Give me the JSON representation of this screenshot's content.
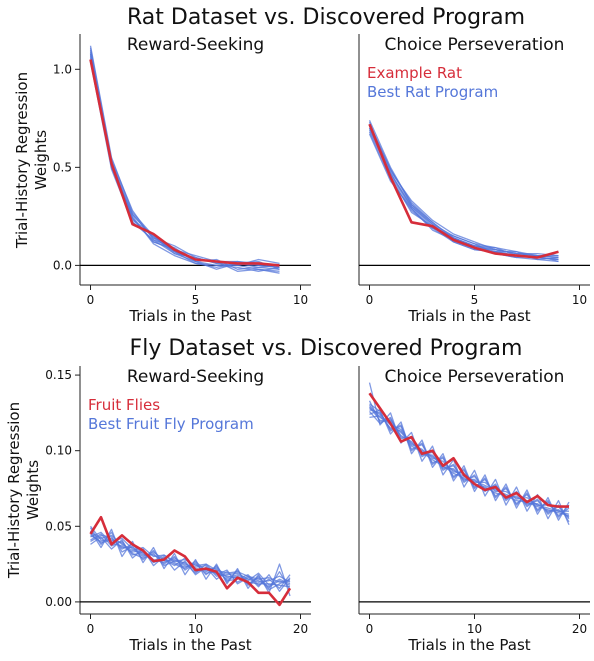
{
  "figure": {
    "row1_title": "Rat Dataset vs. Discovered Program",
    "row2_title": "Fly Dataset vs. Discovered Program",
    "ylabel_line1": "Trial-History Regression",
    "ylabel_line2": "Weights",
    "colors": {
      "data": "#d62d3a",
      "program": "#5577d9",
      "zero_line": "#000000",
      "axis": "#222222"
    }
  },
  "chart_data": [
    {
      "type": "line",
      "title": "Reward-Seeking",
      "xlabel": "Trials in the Past",
      "ylabel": "Trial-History Regression Weights",
      "xlim": [
        -0.5,
        10.5
      ],
      "ylim": [
        -0.1,
        1.18
      ],
      "xticks": [
        0,
        5,
        10
      ],
      "yticks": [
        0.0,
        0.5,
        1.0
      ],
      "ytick_labels": [
        "0.0",
        "0.5",
        "1.0"
      ],
      "zero_line": true,
      "x": [
        0,
        1,
        2,
        3,
        4,
        5,
        6,
        7,
        8,
        9
      ],
      "legend": null,
      "data_series": {
        "color": "#d62d3a",
        "values": [
          1.05,
          0.52,
          0.21,
          0.16,
          0.08,
          0.03,
          0.02,
          0.01,
          0.01,
          0.0
        ]
      },
      "program_series": [
        [
          1.08,
          0.53,
          0.26,
          0.14,
          0.07,
          0.03,
          0.02,
          0.01,
          0.0,
          -0.01
        ],
        [
          1.1,
          0.5,
          0.24,
          0.12,
          0.08,
          0.02,
          0.0,
          0.0,
          -0.02,
          -0.03
        ],
        [
          1.12,
          0.55,
          0.27,
          0.15,
          0.06,
          0.04,
          0.01,
          0.02,
          0.0,
          -0.01
        ],
        [
          1.04,
          0.49,
          0.22,
          0.13,
          0.09,
          0.02,
          0.03,
          -0.02,
          -0.01,
          0.0
        ],
        [
          1.07,
          0.51,
          0.25,
          0.11,
          0.05,
          0.01,
          -0.01,
          0.01,
          0.02,
          -0.02
        ],
        [
          1.09,
          0.52,
          0.23,
          0.16,
          0.07,
          0.03,
          0.02,
          -0.03,
          -0.02,
          -0.04
        ],
        [
          1.06,
          0.5,
          0.26,
          0.14,
          0.1,
          0.04,
          0.01,
          0.0,
          0.03,
          0.01
        ],
        [
          1.11,
          0.54,
          0.28,
          0.13,
          0.06,
          0.02,
          -0.02,
          0.01,
          -0.01,
          -0.02
        ],
        [
          1.05,
          0.53,
          0.24,
          0.12,
          0.08,
          0.05,
          0.02,
          0.02,
          0.01,
          0.0
        ],
        [
          1.08,
          0.5,
          0.22,
          0.15,
          0.07,
          0.01,
          0.0,
          -0.01,
          -0.03,
          -0.01
        ]
      ]
    },
    {
      "type": "line",
      "title": "Choice Perseveration",
      "xlabel": "Trials in the Past",
      "ylabel": "",
      "xlim": [
        -0.5,
        10.5
      ],
      "ylim": [
        -0.1,
        1.18
      ],
      "xticks": [
        0,
        5,
        10
      ],
      "yticks": [],
      "ytick_labels": [],
      "zero_line": true,
      "x": [
        0,
        1,
        2,
        3,
        4,
        5,
        6,
        7,
        8,
        9
      ],
      "legend": {
        "position": "top-left",
        "entries": [
          "Example Rat",
          "Best Rat Program"
        ]
      },
      "data_series": {
        "color": "#d62d3a",
        "values": [
          0.72,
          0.45,
          0.22,
          0.2,
          0.13,
          0.09,
          0.06,
          0.05,
          0.04,
          0.07
        ]
      },
      "program_series": [
        [
          0.7,
          0.47,
          0.3,
          0.2,
          0.14,
          0.1,
          0.07,
          0.05,
          0.04,
          0.03
        ],
        [
          0.72,
          0.49,
          0.32,
          0.22,
          0.13,
          0.09,
          0.08,
          0.06,
          0.05,
          0.04
        ],
        [
          0.68,
          0.44,
          0.28,
          0.19,
          0.15,
          0.11,
          0.06,
          0.04,
          0.05,
          0.02
        ],
        [
          0.74,
          0.5,
          0.31,
          0.21,
          0.12,
          0.08,
          0.07,
          0.07,
          0.03,
          0.04
        ],
        [
          0.69,
          0.46,
          0.29,
          0.18,
          0.13,
          0.1,
          0.09,
          0.05,
          0.04,
          0.03
        ],
        [
          0.71,
          0.48,
          0.33,
          0.23,
          0.16,
          0.12,
          0.08,
          0.06,
          0.06,
          0.05
        ],
        [
          0.73,
          0.45,
          0.27,
          0.2,
          0.14,
          0.09,
          0.06,
          0.04,
          0.03,
          0.02
        ],
        [
          0.7,
          0.47,
          0.3,
          0.21,
          0.15,
          0.11,
          0.09,
          0.07,
          0.05,
          0.04
        ],
        [
          0.67,
          0.43,
          0.29,
          0.19,
          0.12,
          0.08,
          0.07,
          0.05,
          0.04,
          0.03
        ],
        [
          0.72,
          0.49,
          0.31,
          0.22,
          0.14,
          0.1,
          0.08,
          0.06,
          0.05,
          0.05
        ]
      ]
    },
    {
      "type": "line",
      "title": "Reward-Seeking",
      "xlabel": "Trials in the Past",
      "ylabel": "Trial-History Regression Weights",
      "xlim": [
        -1,
        21
      ],
      "ylim": [
        -0.008,
        0.156
      ],
      "xticks": [
        0,
        10,
        20
      ],
      "yticks": [
        0.0,
        0.05,
        0.1,
        0.15
      ],
      "ytick_labels": [
        "0.00",
        "0.05",
        "0.10",
        "0.15"
      ],
      "zero_line": true,
      "x": [
        0,
        1,
        2,
        3,
        4,
        5,
        6,
        7,
        8,
        9,
        10,
        11,
        12,
        13,
        14,
        15,
        16,
        17,
        18,
        19
      ],
      "legend": {
        "position": "top-left",
        "entries": [
          "Fruit Flies",
          "Best Fruit Fly Program"
        ]
      },
      "data_series": {
        "color": "#d62d3a",
        "values": [
          0.045,
          0.056,
          0.038,
          0.044,
          0.038,
          0.034,
          0.027,
          0.028,
          0.034,
          0.03,
          0.021,
          0.022,
          0.02,
          0.009,
          0.016,
          0.013,
          0.006,
          0.006,
          -0.002,
          0.009
        ]
      },
      "program_series": [
        [
          0.046,
          0.042,
          0.044,
          0.038,
          0.034,
          0.036,
          0.03,
          0.031,
          0.027,
          0.028,
          0.024,
          0.025,
          0.021,
          0.019,
          0.02,
          0.017,
          0.015,
          0.016,
          0.013,
          0.014
        ],
        [
          0.041,
          0.045,
          0.037,
          0.04,
          0.031,
          0.033,
          0.026,
          0.029,
          0.025,
          0.022,
          0.027,
          0.02,
          0.023,
          0.016,
          0.018,
          0.014,
          0.019,
          0.011,
          0.015,
          0.012
        ],
        [
          0.049,
          0.038,
          0.046,
          0.033,
          0.037,
          0.028,
          0.034,
          0.025,
          0.03,
          0.021,
          0.026,
          0.018,
          0.024,
          0.013,
          0.021,
          0.011,
          0.017,
          0.009,
          0.02,
          0.008
        ],
        [
          0.038,
          0.043,
          0.035,
          0.041,
          0.029,
          0.035,
          0.024,
          0.03,
          0.021,
          0.027,
          0.018,
          0.023,
          0.015,
          0.02,
          0.013,
          0.017,
          0.01,
          0.018,
          0.007,
          0.016
        ],
        [
          0.044,
          0.04,
          0.042,
          0.036,
          0.036,
          0.031,
          0.031,
          0.027,
          0.028,
          0.024,
          0.022,
          0.021,
          0.019,
          0.017,
          0.016,
          0.013,
          0.012,
          0.012,
          0.011,
          0.01
        ],
        [
          0.047,
          0.036,
          0.048,
          0.03,
          0.04,
          0.026,
          0.036,
          0.022,
          0.032,
          0.018,
          0.028,
          0.015,
          0.025,
          0.012,
          0.022,
          0.009,
          0.018,
          0.006,
          0.025,
          0.004
        ],
        [
          0.043,
          0.046,
          0.039,
          0.037,
          0.033,
          0.034,
          0.028,
          0.026,
          0.029,
          0.025,
          0.023,
          0.024,
          0.017,
          0.018,
          0.019,
          0.015,
          0.013,
          0.014,
          0.017,
          0.013
        ],
        [
          0.05,
          0.041,
          0.04,
          0.042,
          0.035,
          0.03,
          0.033,
          0.028,
          0.024,
          0.029,
          0.02,
          0.022,
          0.022,
          0.014,
          0.015,
          0.018,
          0.011,
          0.015,
          0.009,
          0.018
        ],
        [
          0.04,
          0.044,
          0.043,
          0.035,
          0.038,
          0.032,
          0.027,
          0.031,
          0.026,
          0.023,
          0.025,
          0.019,
          0.02,
          0.015,
          0.017,
          0.012,
          0.016,
          0.008,
          0.012,
          0.015
        ],
        [
          0.045,
          0.039,
          0.041,
          0.039,
          0.032,
          0.029,
          0.032,
          0.024,
          0.027,
          0.026,
          0.019,
          0.025,
          0.018,
          0.021,
          0.012,
          0.016,
          0.014,
          0.01,
          0.014,
          0.011
        ]
      ]
    },
    {
      "type": "line",
      "title": "Choice Perseveration",
      "xlabel": "Trials in the Past",
      "ylabel": "",
      "xlim": [
        -1,
        21
      ],
      "ylim": [
        -0.008,
        0.156
      ],
      "xticks": [
        0,
        10,
        20
      ],
      "yticks": [],
      "ytick_labels": [],
      "zero_line": true,
      "x": [
        0,
        1,
        2,
        3,
        4,
        5,
        6,
        7,
        8,
        9,
        10,
        11,
        12,
        13,
        14,
        15,
        16,
        17,
        18,
        19
      ],
      "legend": null,
      "data_series": {
        "color": "#d62d3a",
        "values": [
          0.138,
          0.128,
          0.118,
          0.106,
          0.109,
          0.098,
          0.1,
          0.09,
          0.095,
          0.084,
          0.078,
          0.074,
          0.076,
          0.069,
          0.072,
          0.066,
          0.07,
          0.064,
          0.063,
          0.063
        ]
      },
      "program_series": [
        [
          0.13,
          0.122,
          0.118,
          0.112,
          0.105,
          0.1,
          0.096,
          0.091,
          0.087,
          0.083,
          0.08,
          0.077,
          0.074,
          0.071,
          0.069,
          0.067,
          0.064,
          0.062,
          0.06,
          0.058
        ],
        [
          0.127,
          0.125,
          0.114,
          0.116,
          0.101,
          0.104,
          0.092,
          0.095,
          0.083,
          0.087,
          0.076,
          0.081,
          0.07,
          0.075,
          0.065,
          0.071,
          0.061,
          0.066,
          0.057,
          0.062
        ],
        [
          0.133,
          0.119,
          0.121,
          0.109,
          0.108,
          0.097,
          0.099,
          0.088,
          0.09,
          0.08,
          0.083,
          0.074,
          0.077,
          0.068,
          0.072,
          0.064,
          0.067,
          0.059,
          0.063,
          0.055
        ],
        [
          0.124,
          0.127,
          0.111,
          0.119,
          0.098,
          0.107,
          0.089,
          0.098,
          0.08,
          0.09,
          0.073,
          0.084,
          0.067,
          0.078,
          0.062,
          0.074,
          0.058,
          0.069,
          0.054,
          0.066
        ],
        [
          0.145,
          0.117,
          0.125,
          0.105,
          0.112,
          0.093,
          0.103,
          0.084,
          0.094,
          0.076,
          0.087,
          0.07,
          0.081,
          0.064,
          0.076,
          0.06,
          0.071,
          0.055,
          0.067,
          0.051
        ],
        [
          0.122,
          0.123,
          0.115,
          0.113,
          0.103,
          0.099,
          0.094,
          0.09,
          0.085,
          0.082,
          0.078,
          0.076,
          0.072,
          0.07,
          0.067,
          0.066,
          0.063,
          0.061,
          0.059,
          0.057
        ],
        [
          0.129,
          0.12,
          0.12,
          0.11,
          0.106,
          0.098,
          0.097,
          0.089,
          0.088,
          0.081,
          0.081,
          0.075,
          0.075,
          0.069,
          0.07,
          0.065,
          0.065,
          0.06,
          0.061,
          0.056
        ],
        [
          0.131,
          0.126,
          0.113,
          0.117,
          0.1,
          0.105,
          0.091,
          0.096,
          0.082,
          0.088,
          0.075,
          0.082,
          0.069,
          0.076,
          0.064,
          0.072,
          0.06,
          0.067,
          0.056,
          0.064
        ],
        [
          0.126,
          0.118,
          0.122,
          0.108,
          0.109,
          0.096,
          0.1,
          0.087,
          0.091,
          0.079,
          0.084,
          0.073,
          0.078,
          0.067,
          0.073,
          0.063,
          0.068,
          0.058,
          0.064,
          0.053
        ],
        [
          0.128,
          0.124,
          0.117,
          0.114,
          0.104,
          0.101,
          0.095,
          0.093,
          0.086,
          0.085,
          0.079,
          0.079,
          0.073,
          0.073,
          0.068,
          0.069,
          0.064,
          0.064,
          0.06,
          0.06
        ]
      ]
    }
  ]
}
